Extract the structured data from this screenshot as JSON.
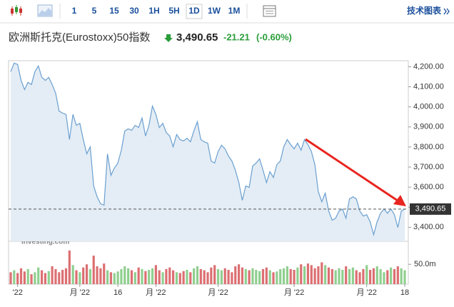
{
  "toolbar": {
    "timeframes": [
      "1",
      "5",
      "15",
      "30",
      "1H",
      "5H",
      "1D",
      "1W",
      "1M"
    ],
    "active": "1D",
    "link": "技术图表"
  },
  "header": {
    "name": "欧洲斯托克(Eurostoxx)50指数",
    "price": "3,490.65",
    "change": "-21.21",
    "change_pct": "(-0.60%)"
  },
  "chart_data": {
    "type": "area",
    "color": "#6a9fd0",
    "fill": "#e4edf5",
    "values": [
      4175,
      4218,
      4211,
      4132,
      4086,
      4122,
      4111,
      4175,
      4204,
      4147,
      4132,
      4147,
      4111,
      4068,
      3979,
      3969,
      3962,
      3837,
      3962,
      3908,
      3918,
      3837,
      3766,
      3801,
      3606,
      3552,
      3517,
      3510,
      3766,
      3659,
      3695,
      3720,
      3784,
      3880,
      3890,
      3883,
      3908,
      3897,
      3944,
      3855,
      3908,
      4004,
      3962,
      3897,
      3918,
      3872,
      3855,
      3801,
      3862,
      3837,
      3830,
      3844,
      3826,
      3880,
      3926,
      3837,
      3826,
      3819,
      3730,
      3720,
      3777,
      3809,
      3791,
      3755,
      3730,
      3684,
      3623,
      3534,
      3606,
      3599,
      3705,
      3720,
      3741,
      3684,
      3623,
      3677,
      3648,
      3712,
      3730,
      3801,
      3837,
      3812,
      3791,
      3819,
      3784,
      3837,
      3812,
      3777,
      3712,
      3577,
      3527,
      3570,
      3481,
      3435,
      3445,
      3481,
      3491,
      3445,
      3541,
      3552,
      3541,
      3481,
      3456,
      3463,
      3427,
      3363,
      3427,
      3470,
      3491,
      3470,
      3491,
      3463,
      3399,
      3481,
      3490.65
    ],
    "ylim": [
      3330,
      4230
    ],
    "yticks": [
      {
        "value": 4200,
        "label": "4,200.00"
      },
      {
        "value": 4100,
        "label": "4,100.00"
      },
      {
        "value": 4000,
        "label": "4,000.00"
      },
      {
        "value": 3900,
        "label": "3,900.00"
      },
      {
        "value": 3800,
        "label": "3,800.00"
      },
      {
        "value": 3700,
        "label": "3,700.00"
      },
      {
        "value": 3600,
        "label": "3,600.00"
      },
      {
        "value": 3500,
        "label": "3,500.00"
      },
      {
        "value": 3400,
        "label": "3,400.00"
      }
    ],
    "last_price": {
      "value": 3490.65,
      "label": "3,490.65"
    },
    "xlim": [
      0,
      114
    ],
    "xticks": [
      {
        "value": 2,
        "label": "'22"
      },
      {
        "value": 20,
        "label": "月 '22"
      },
      {
        "value": 31,
        "label": "16"
      },
      {
        "value": 42,
        "label": "月 '22"
      },
      {
        "value": 60,
        "label": "月 '22"
      },
      {
        "value": 82,
        "label": "月 '22"
      },
      {
        "value": 103,
        "label": "月 '22"
      },
      {
        "value": 114,
        "label": "18"
      }
    ],
    "watermark": {
      "title": "英为财情",
      "subtitle": "Investing.com"
    },
    "volume": {
      "up_color": "#8fcf8f",
      "down_color": "#dc6f72",
      "ylim": [
        0,
        108
      ],
      "yticks": [
        {
          "value": 50,
          "label": "50.0m"
        }
      ],
      "values": [
        30,
        35,
        28,
        40,
        32,
        38,
        25,
        30,
        42,
        35,
        28,
        33,
        45,
        38,
        30,
        36,
        40,
        85,
        48,
        35,
        30,
        42,
        50,
        38,
        72,
        45,
        40,
        52,
        35,
        30,
        28,
        32,
        38,
        45,
        40,
        35,
        30,
        42,
        38,
        33,
        36,
        40,
        48,
        35,
        30,
        38,
        42,
        35,
        30,
        28,
        33,
        36,
        30,
        40,
        45,
        38,
        35,
        30,
        42,
        48,
        38,
        35,
        40,
        36,
        30,
        45,
        50,
        42,
        38,
        35,
        40,
        36,
        33,
        38,
        42,
        35,
        30,
        32,
        38,
        40,
        45,
        38,
        36,
        42,
        50,
        45,
        52,
        48,
        40,
        45,
        55,
        48,
        42,
        38,
        35,
        40,
        36,
        45,
        38,
        42,
        35,
        30,
        38,
        48,
        36,
        40,
        45,
        38,
        30,
        35,
        42,
        38,
        45,
        40,
        35
      ]
    }
  }
}
